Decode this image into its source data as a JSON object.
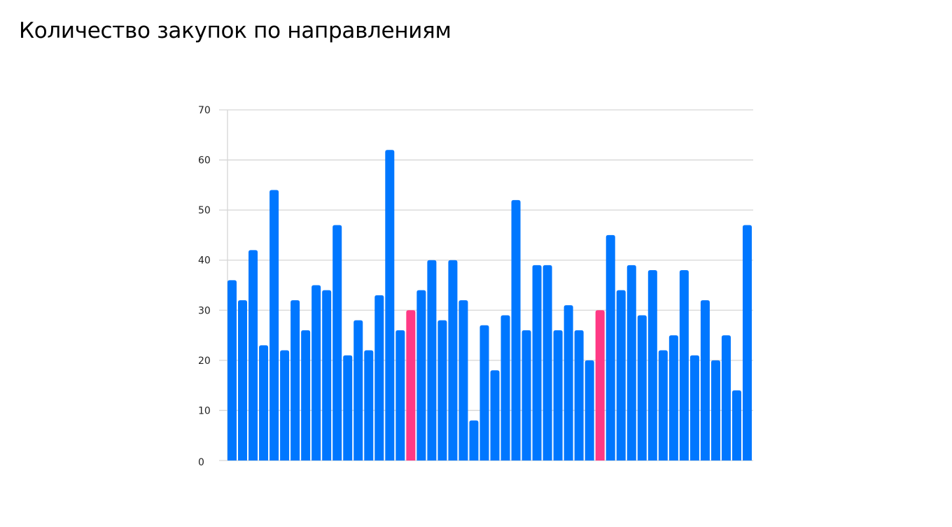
{
  "chart_data": {
    "type": "bar",
    "title": "Количество закупок по направлениям",
    "xlabel": "",
    "ylabel": "",
    "ylim": [
      0,
      70
    ],
    "yticks": [
      0,
      10,
      20,
      30,
      40,
      50,
      60,
      70
    ],
    "grid": true,
    "colors": {
      "default": "#0077FF",
      "highlight": "#FF3985",
      "grid": "#D6D6D6"
    },
    "highlight_indices": [
      17,
      35
    ],
    "values": [
      36,
      32,
      42,
      23,
      54,
      22,
      32,
      26,
      35,
      34,
      47,
      21,
      28,
      22,
      33,
      62,
      26,
      30,
      34,
      40,
      28,
      40,
      32,
      8,
      27,
      18,
      29,
      52,
      26,
      39,
      39,
      26,
      31,
      26,
      20,
      30,
      45,
      34,
      39,
      29,
      38,
      22,
      25,
      38,
      21,
      32,
      20,
      25,
      14,
      47
    ]
  }
}
